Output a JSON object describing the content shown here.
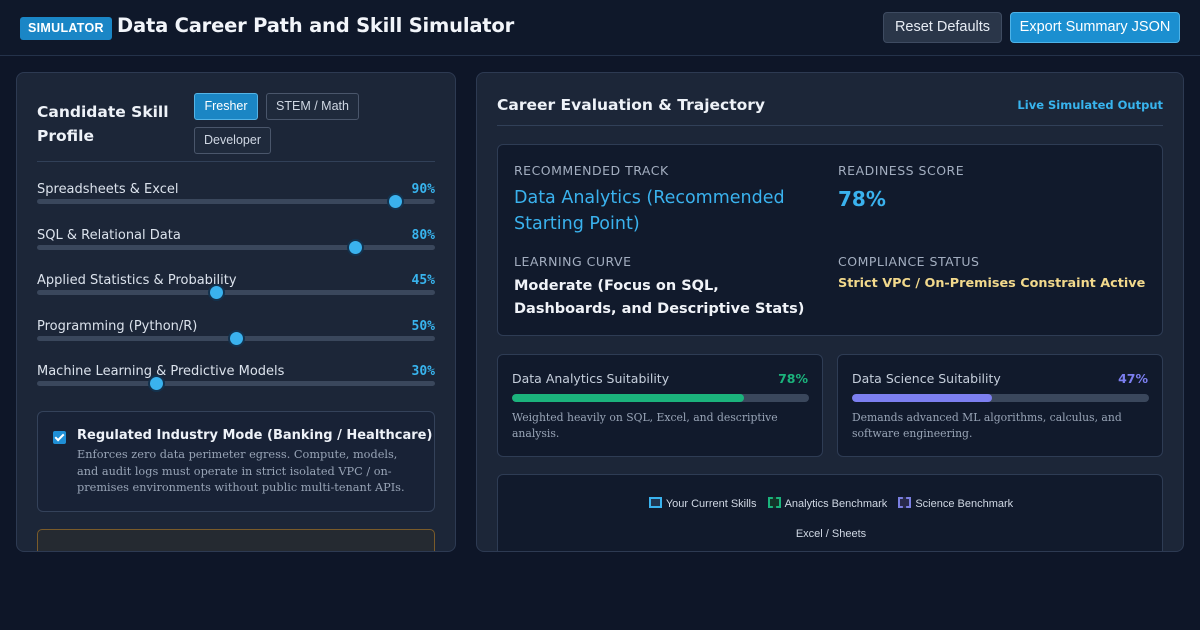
{
  "header": {
    "badge": "SIMULATOR",
    "title": "Data Career Path and Skill Simulator",
    "reset_label": "Reset Defaults",
    "export_label": "Export Summary JSON"
  },
  "profile": {
    "title": "Candidate Skill Profile",
    "presets": [
      {
        "label": "Fresher",
        "active": true
      },
      {
        "label": "STEM / Math",
        "active": false
      },
      {
        "label": "Developer",
        "active": false
      }
    ],
    "skills": [
      {
        "label": "Spreadsheets & Excel",
        "value_text": "90%",
        "value": 90
      },
      {
        "label": "SQL & Relational Data",
        "value_text": "80%",
        "value": 80
      },
      {
        "label": "Applied Statistics & Probability",
        "value_text": "45%",
        "value": 45
      },
      {
        "label": "Programming (Python/R)",
        "value_text": "50%",
        "value": 50
      },
      {
        "label": "Machine Learning & Predictive Models",
        "value_text": "30%",
        "value": 30
      }
    ],
    "regulated": {
      "checked": true,
      "title": "Regulated Industry Mode (Banking / Healthcare)",
      "description": "Enforces zero data perimeter egress. Compute, models, and audit logs must operate in strict isolated VPC / on-premises environments without public multi-tenant APIs."
    }
  },
  "evaluation": {
    "title": "Career Evaluation & Trajectory",
    "live_label": "Live Simulated Output",
    "recommended_track_label": "RECOMMENDED TRACK",
    "recommended_track": "Data Analytics (Recommended Starting Point)",
    "readiness_label": "READINESS SCORE",
    "readiness_value": "78%",
    "learning_curve_label": "LEARNING CURVE",
    "learning_curve": "Moderate (Focus on SQL, Dashboards, and Descriptive Stats)",
    "compliance_label": "COMPLIANCE STATUS",
    "compliance_value": "Strict VPC / On-Premises Constraint Active"
  },
  "suitability": [
    {
      "title": "Data Analytics Suitability",
      "value_text": "78%",
      "value": 78,
      "color": "#1bb37c",
      "description": "Weighted heavily on SQL, Excel, and descriptive analysis."
    },
    {
      "title": "Data Science Suitability",
      "value_text": "47%",
      "value": 47,
      "color": "#7c7ff0",
      "description": "Demands advanced ML algorithms, calculus, and software engineering."
    }
  ],
  "chart": {
    "legend": [
      "Your Current Skills",
      "Analytics Benchmark",
      "Science Benchmark"
    ],
    "first_axis_label": "Excel / Sheets"
  },
  "colors": {
    "accent": "#3ab2ee",
    "analytics": "#1bb37c",
    "science": "#7c7ff0",
    "compliance": "#f2d98c"
  }
}
